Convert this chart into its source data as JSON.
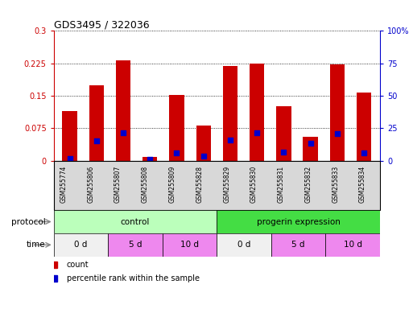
{
  "title": "GDS3495 / 322036",
  "samples": [
    "GSM255774",
    "GSM255806",
    "GSM255807",
    "GSM255808",
    "GSM255809",
    "GSM255828",
    "GSM255829",
    "GSM255830",
    "GSM255831",
    "GSM255832",
    "GSM255833",
    "GSM255834"
  ],
  "red_values": [
    0.115,
    0.175,
    0.232,
    0.008,
    0.152,
    0.082,
    0.218,
    0.225,
    0.125,
    0.055,
    0.222,
    0.158
  ],
  "blue_values": [
    0.005,
    0.045,
    0.065,
    0.003,
    0.018,
    0.01,
    0.048,
    0.065,
    0.02,
    0.04,
    0.062,
    0.018
  ],
  "ylim_left": [
    0,
    0.3
  ],
  "ylim_right": [
    0,
    100
  ],
  "yticks_left": [
    0,
    0.075,
    0.15,
    0.225,
    0.3
  ],
  "yticks_right": [
    0,
    25,
    50,
    75,
    100
  ],
  "ytick_labels_left": [
    "0",
    "0.075",
    "0.15",
    "0.225",
    "0.3"
  ],
  "ytick_labels_right": [
    "0",
    "25",
    "50",
    "75",
    "100%"
  ],
  "bar_color": "#cc0000",
  "dot_color": "#0000cc",
  "background_color": "#ffffff",
  "legend_items": [
    {
      "label": "count",
      "color": "#cc0000"
    },
    {
      "label": "percentile rank within the sample",
      "color": "#0000cc"
    }
  ],
  "protocol_label": "protocol",
  "time_label": "time",
  "proto_spans": [
    {
      "start": 0,
      "end": 6,
      "color": "#bbffbb",
      "label": "control"
    },
    {
      "start": 6,
      "end": 12,
      "color": "#44dd44",
      "label": "progerin expression"
    }
  ],
  "time_spans": [
    {
      "start": 0,
      "end": 2,
      "color": "#f0f0f0",
      "label": "0 d"
    },
    {
      "start": 2,
      "end": 4,
      "color": "#ee88ee",
      "label": "5 d"
    },
    {
      "start": 4,
      "end": 6,
      "color": "#ee88ee",
      "label": "10 d"
    },
    {
      "start": 6,
      "end": 8,
      "color": "#f0f0f0",
      "label": "0 d"
    },
    {
      "start": 8,
      "end": 10,
      "color": "#ee88ee",
      "label": "5 d"
    },
    {
      "start": 10,
      "end": 12,
      "color": "#ee88ee",
      "label": "10 d"
    }
  ]
}
